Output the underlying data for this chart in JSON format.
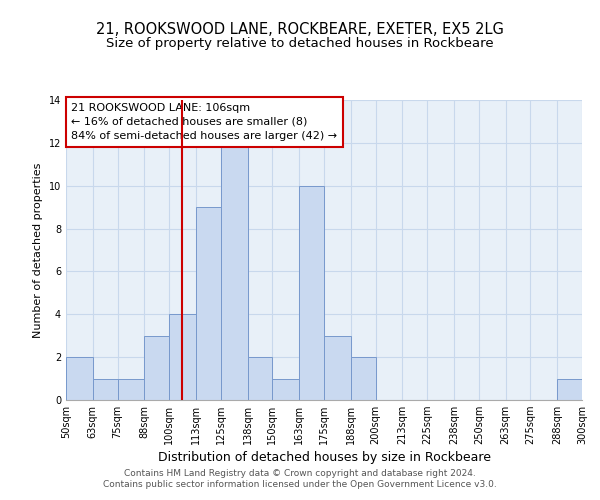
{
  "title": "21, ROOKSWOOD LANE, ROCKBEARE, EXETER, EX5 2LG",
  "subtitle": "Size of property relative to detached houses in Rockbeare",
  "xlabel": "Distribution of detached houses by size in Rockbeare",
  "ylabel": "Number of detached properties",
  "bin_edges": [
    50,
    63,
    75,
    88,
    100,
    113,
    125,
    138,
    150,
    163,
    175,
    188,
    200,
    213,
    225,
    238,
    250,
    263,
    275,
    288,
    300
  ],
  "bin_labels": [
    "50sqm",
    "63sqm",
    "75sqm",
    "88sqm",
    "100sqm",
    "113sqm",
    "125sqm",
    "138sqm",
    "150sqm",
    "163sqm",
    "175sqm",
    "188sqm",
    "200sqm",
    "213sqm",
    "225sqm",
    "238sqm",
    "250sqm",
    "263sqm",
    "275sqm",
    "288sqm",
    "300sqm"
  ],
  "counts": [
    2,
    1,
    1,
    3,
    4,
    9,
    12,
    2,
    1,
    10,
    3,
    2,
    0,
    0,
    0,
    0,
    0,
    0,
    0,
    1
  ],
  "bar_color": "#c9d9f0",
  "bar_edge_color": "#7799cc",
  "vline_x": 106,
  "vline_color": "#cc0000",
  "annotation_box_text": "21 ROOKSWOOD LANE: 106sqm\n← 16% of detached houses are smaller (8)\n84% of semi-detached houses are larger (42) →",
  "box_edge_color": "#cc0000",
  "ylim": [
    0,
    14
  ],
  "yticks": [
    0,
    2,
    4,
    6,
    8,
    10,
    12,
    14
  ],
  "grid_color": "#c8d8ec",
  "background_color": "#e8f0f8",
  "footer_line1": "Contains HM Land Registry data © Crown copyright and database right 2024.",
  "footer_line2": "Contains public sector information licensed under the Open Government Licence v3.0.",
  "title_fontsize": 10.5,
  "subtitle_fontsize": 9.5,
  "xlabel_fontsize": 9,
  "ylabel_fontsize": 8,
  "tick_fontsize": 7,
  "annotation_fontsize": 8,
  "footer_fontsize": 6.5
}
